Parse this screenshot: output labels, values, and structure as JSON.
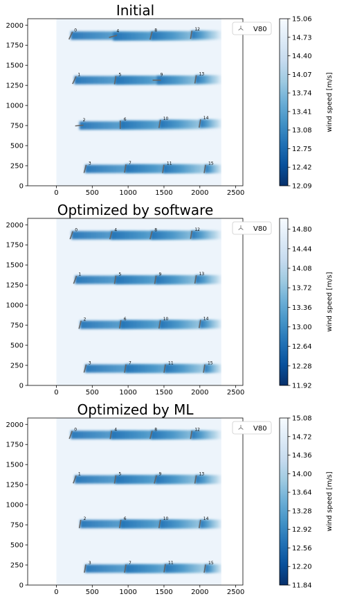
{
  "colors": {
    "colormap": [
      "#08306b",
      "#08519c",
      "#2171b5",
      "#4292c6",
      "#6baed6",
      "#9ecae1",
      "#c6dbef",
      "#deebf7",
      "#f7fbff"
    ],
    "turbine": "#666666",
    "background": "#ffffff"
  },
  "legend_icon": "wind-turbine-icon",
  "chart_data": [
    {
      "type": "heatmap",
      "title": "Initial",
      "legend_label": "V80",
      "legend_position": "top-right",
      "xlim": [
        -400,
        2600
      ],
      "ylim": [
        0,
        2080
      ],
      "x_ticks": [
        0,
        500,
        1000,
        1500,
        2000,
        2500
      ],
      "y_ticks": [
        0,
        250,
        500,
        750,
        1000,
        1250,
        1500,
        1750,
        2000
      ],
      "field_x_range": [
        0,
        2300
      ],
      "colorbar": {
        "label": "wind speed [m/s]",
        "range": [
          12.09,
          15.06
        ],
        "ticks": [
          "15.06",
          "14.73",
          "14.40",
          "14.07",
          "13.74",
          "13.41",
          "13.08",
          "12.75",
          "12.42",
          "12.09"
        ]
      },
      "turbines": [
        {
          "id": "0",
          "x": 200,
          "y": 1870,
          "yaw": 25
        },
        {
          "id": "1",
          "x": 250,
          "y": 1315,
          "yaw": 25
        },
        {
          "id": "2",
          "x": 320,
          "y": 750,
          "yaw": 85
        },
        {
          "id": "3",
          "x": 400,
          "y": 210,
          "yaw": 15
        },
        {
          "id": "4",
          "x": 790,
          "y": 1860,
          "yaw": 75
        },
        {
          "id": "5",
          "x": 820,
          "y": 1315,
          "yaw": 10
        },
        {
          "id": "6",
          "x": 890,
          "y": 760,
          "yaw": 0
        },
        {
          "id": "7",
          "x": 960,
          "y": 215,
          "yaw": 10
        },
        {
          "id": "8",
          "x": 1320,
          "y": 1870,
          "yaw": 15
        },
        {
          "id": "9",
          "x": 1400,
          "y": 1315,
          "yaw": 90
        },
        {
          "id": "10",
          "x": 1440,
          "y": 770,
          "yaw": 10
        },
        {
          "id": "11",
          "x": 1490,
          "y": 210,
          "yaw": 10
        },
        {
          "id": "12",
          "x": 1880,
          "y": 1880,
          "yaw": 10
        },
        {
          "id": "13",
          "x": 1940,
          "y": 1325,
          "yaw": 10
        },
        {
          "id": "14",
          "x": 2000,
          "y": 775,
          "yaw": 10
        },
        {
          "id": "15",
          "x": 2070,
          "y": 210,
          "yaw": 10
        }
      ]
    },
    {
      "type": "heatmap",
      "title": "Optimized by software",
      "legend_label": "V80",
      "legend_position": "top-right",
      "xlim": [
        -400,
        2600
      ],
      "ylim": [
        0,
        2080
      ],
      "x_ticks": [
        0,
        500,
        1000,
        1500,
        2000,
        2500
      ],
      "y_ticks": [
        0,
        250,
        500,
        750,
        1000,
        1250,
        1500,
        1750,
        2000
      ],
      "field_x_range": [
        0,
        2300
      ],
      "colorbar": {
        "label": "wind speed [m/s]",
        "range": [
          11.92,
          15.0
        ],
        "ticks": [
          "14.80",
          "14.44",
          "14.08",
          "13.72",
          "13.36",
          "13.00",
          "12.64",
          "12.28",
          "11.92"
        ]
      },
      "turbines": [
        {
          "id": "0",
          "x": 210,
          "y": 1870,
          "yaw": 20
        },
        {
          "id": "1",
          "x": 260,
          "y": 1315,
          "yaw": 20
        },
        {
          "id": "2",
          "x": 330,
          "y": 755,
          "yaw": 15
        },
        {
          "id": "3",
          "x": 400,
          "y": 210,
          "yaw": 15
        },
        {
          "id": "4",
          "x": 760,
          "y": 1870,
          "yaw": 15
        },
        {
          "id": "5",
          "x": 820,
          "y": 1315,
          "yaw": 10
        },
        {
          "id": "6",
          "x": 890,
          "y": 760,
          "yaw": 10
        },
        {
          "id": "7",
          "x": 960,
          "y": 210,
          "yaw": 10
        },
        {
          "id": "8",
          "x": 1320,
          "y": 1870,
          "yaw": 15
        },
        {
          "id": "9",
          "x": 1380,
          "y": 1315,
          "yaw": 10
        },
        {
          "id": "10",
          "x": 1440,
          "y": 760,
          "yaw": 10
        },
        {
          "id": "11",
          "x": 1510,
          "y": 210,
          "yaw": 10
        },
        {
          "id": "12",
          "x": 1880,
          "y": 1875,
          "yaw": 10
        },
        {
          "id": "13",
          "x": 1940,
          "y": 1320,
          "yaw": 10
        },
        {
          "id": "14",
          "x": 2000,
          "y": 765,
          "yaw": 10
        },
        {
          "id": "15",
          "x": 2060,
          "y": 210,
          "yaw": 10
        }
      ]
    },
    {
      "type": "heatmap",
      "title": "Optimized by ML",
      "legend_label": "V80",
      "legend_position": "top-right",
      "xlim": [
        -400,
        2600
      ],
      "ylim": [
        0,
        2080
      ],
      "x_ticks": [
        0,
        500,
        1000,
        1500,
        2000,
        2500
      ],
      "y_ticks": [
        0,
        250,
        500,
        750,
        1000,
        1250,
        1500,
        1750,
        2000
      ],
      "field_x_range": [
        0,
        2300
      ],
      "colorbar": {
        "label": "wind speed [m/s]",
        "range": [
          11.84,
          15.08
        ],
        "ticks": [
          "15.08",
          "14.72",
          "14.36",
          "14.00",
          "13.64",
          "13.28",
          "12.92",
          "12.56",
          "12.20",
          "11.84"
        ]
      },
      "turbines": [
        {
          "id": "0",
          "x": 200,
          "y": 1870,
          "yaw": 20
        },
        {
          "id": "1",
          "x": 255,
          "y": 1315,
          "yaw": 20
        },
        {
          "id": "2",
          "x": 330,
          "y": 760,
          "yaw": 10
        },
        {
          "id": "3",
          "x": 400,
          "y": 205,
          "yaw": 10
        },
        {
          "id": "4",
          "x": 760,
          "y": 1870,
          "yaw": 10
        },
        {
          "id": "5",
          "x": 820,
          "y": 1315,
          "yaw": 10
        },
        {
          "id": "6",
          "x": 890,
          "y": 760,
          "yaw": 10
        },
        {
          "id": "7",
          "x": 960,
          "y": 205,
          "yaw": 10
        },
        {
          "id": "8",
          "x": 1320,
          "y": 1870,
          "yaw": 15
        },
        {
          "id": "9",
          "x": 1380,
          "y": 1315,
          "yaw": 15
        },
        {
          "id": "10",
          "x": 1440,
          "y": 760,
          "yaw": 10
        },
        {
          "id": "11",
          "x": 1510,
          "y": 210,
          "yaw": 10
        },
        {
          "id": "12",
          "x": 1880,
          "y": 1870,
          "yaw": 10
        },
        {
          "id": "13",
          "x": 1940,
          "y": 1315,
          "yaw": 10
        },
        {
          "id": "14",
          "x": 2000,
          "y": 760,
          "yaw": 10
        },
        {
          "id": "15",
          "x": 2070,
          "y": 205,
          "yaw": 10
        }
      ]
    }
  ]
}
